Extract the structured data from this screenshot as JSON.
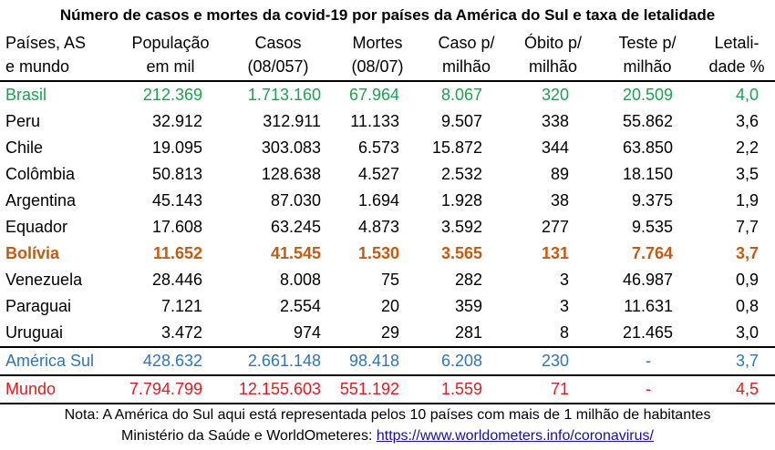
{
  "title": "Número de casos e mortes da covid-19 por países da América do Sul e taxa de letalidade",
  "headers": [
    {
      "l1": "Países, AS",
      "l2": "e mundo"
    },
    {
      "l1": "População",
      "l2": "em mil"
    },
    {
      "l1": "Casos",
      "l2": "(08/057)"
    },
    {
      "l1": "Mortes",
      "l2": "(08/07)"
    },
    {
      "l1": "Caso p/",
      "l2": "milhão"
    },
    {
      "l1": "Óbito p/",
      "l2": "milhão"
    },
    {
      "l1": "Teste p/",
      "l2": "milhão"
    },
    {
      "l1": "Letali-",
      "l2": "dade %"
    }
  ],
  "rows": [
    {
      "pais": "Brasil",
      "pop": "212.369",
      "casos": "1.713.160",
      "mortes": "67.964",
      "caso_pm": "8.067",
      "obito_pm": "320",
      "teste_pm": "20.509",
      "letal": "4,0"
    },
    {
      "pais": "Peru",
      "pop": "32.912",
      "casos": "312.911",
      "mortes": "11.133",
      "caso_pm": "9.507",
      "obito_pm": "338",
      "teste_pm": "55.862",
      "letal": "3,6"
    },
    {
      "pais": "Chile",
      "pop": "19.095",
      "casos": "303.083",
      "mortes": "6.573",
      "caso_pm": "15.872",
      "obito_pm": "344",
      "teste_pm": "63.850",
      "letal": "2,2"
    },
    {
      "pais": "Colômbia",
      "pop": "50.813",
      "casos": "128.638",
      "mortes": "4.527",
      "caso_pm": "2.532",
      "obito_pm": "89",
      "teste_pm": "18.150",
      "letal": "3,5"
    },
    {
      "pais": "Argentina",
      "pop": "45.143",
      "casos": "87.030",
      "mortes": "1.694",
      "caso_pm": "1.928",
      "obito_pm": "38",
      "teste_pm": "9.375",
      "letal": "1,9"
    },
    {
      "pais": "Equador",
      "pop": "17.608",
      "casos": "63.245",
      "mortes": "4.873",
      "caso_pm": "3.592",
      "obito_pm": "277",
      "teste_pm": "9.535",
      "letal": "7,7"
    },
    {
      "pais": "Bolívia",
      "pop": "11.652",
      "casos": "41.545",
      "mortes": "1.530",
      "caso_pm": "3.565",
      "obito_pm": "131",
      "teste_pm": "7.764",
      "letal": "3,7"
    },
    {
      "pais": "Venezuela",
      "pop": "28.446",
      "casos": "8.008",
      "mortes": "75",
      "caso_pm": "282",
      "obito_pm": "3",
      "teste_pm": "46.987",
      "letal": "0,9"
    },
    {
      "pais": "Paraguai",
      "pop": "7.121",
      "casos": "2.554",
      "mortes": "20",
      "caso_pm": "359",
      "obito_pm": "3",
      "teste_pm": "11.631",
      "letal": "0,8"
    },
    {
      "pais": "Uruguai",
      "pop": "3.472",
      "casos": "974",
      "mortes": "29",
      "caso_pm": "281",
      "obito_pm": "8",
      "teste_pm": "21.465",
      "letal": "3,0"
    },
    {
      "pais": "América Sul",
      "pop": "428.632",
      "casos": "2.661.148",
      "mortes": "98.418",
      "caso_pm": "6.208",
      "obito_pm": "230",
      "teste_pm": "-",
      "letal": "3,7"
    },
    {
      "pais": "Mundo",
      "pop": "7.794.799",
      "casos": "12.155.603",
      "mortes": "551.192",
      "caso_pm": "1.559",
      "obito_pm": "71",
      "teste_pm": "-",
      "letal": "4,5"
    }
  ],
  "colors": {
    "brasil": "#1ea050",
    "bolivia": "#c55a11",
    "america_sul": "#2e75b6",
    "mundo": "#e31a1c"
  },
  "note": {
    "line1": "Nota: A América do Sul aqui está representada pelos 10 países com mais de 1 milhão de habitantes",
    "line2_prefix": "Ministério da Saúde e WorldOmeteres: ",
    "link": "https://www.worldometers.info/coronavirus/"
  }
}
